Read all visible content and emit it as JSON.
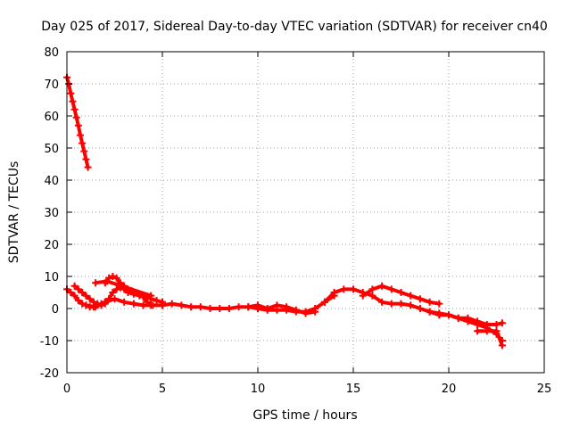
{
  "chart_data": {
    "type": "scatter",
    "title": "Day 025 of 2017, Sidereal Day-to-day VTEC variation (SDTVAR) for receiver cn40",
    "xlabel": "GPS time / hours",
    "ylabel": "SDTVAR / TECUs",
    "xlim": [
      0,
      25
    ],
    "ylim": [
      -20,
      80
    ],
    "xticks": [
      "0",
      "5",
      "10",
      "15",
      "20",
      "25"
    ],
    "yticks": [
      "-20",
      "-10",
      "0",
      "10",
      "20",
      "30",
      "40",
      "50",
      "60",
      "70",
      "80"
    ],
    "grid": true,
    "marker": "plus",
    "series": [
      {
        "name": "satellite-descending-high",
        "color": "#ff0000",
        "x": [
          0.0,
          0.1,
          0.2,
          0.3,
          0.4,
          0.5,
          0.6,
          0.7,
          0.8,
          0.9,
          1.0,
          1.1
        ],
        "y": [
          72,
          70,
          67,
          64.5,
          62,
          59.5,
          57,
          54,
          51.5,
          49,
          46.5,
          44
        ]
      },
      {
        "name": "track-early-a",
        "color": "#ff0000",
        "x": [
          0.0,
          0.2,
          0.4,
          0.6,
          0.8,
          1.0,
          1.2,
          1.4,
          1.6,
          1.8,
          2.0,
          2.2
        ],
        "y": [
          6,
          5,
          4,
          2.5,
          1.5,
          1,
          0.5,
          0.5,
          1,
          1.5,
          2,
          3
        ]
      },
      {
        "name": "track-early-b",
        "color": "#ff0000",
        "x": [
          0.4,
          0.6,
          0.8,
          1.0,
          1.2,
          1.4,
          1.6,
          1.8,
          2.0,
          2.2,
          2.4,
          2.6,
          2.8,
          3.0,
          3.2,
          3.5,
          3.8,
          4.1,
          4.4,
          4.7,
          5.0
        ],
        "y": [
          7,
          6,
          5,
          4,
          3,
          2,
          1.5,
          1,
          1.5,
          3,
          5,
          6,
          6.5,
          6,
          5,
          4.5,
          4,
          3.5,
          3,
          2.5,
          2
        ]
      },
      {
        "name": "track-early-c",
        "color": "#ff0000",
        "x": [
          2.0,
          2.2,
          2.4,
          2.6,
          2.8,
          3.0,
          3.2,
          3.4,
          3.6,
          3.8,
          4.0,
          4.2,
          4.4
        ],
        "y": [
          8,
          9.5,
          10,
          9.5,
          8,
          7,
          6,
          5.5,
          5,
          4.5,
          3.5,
          2,
          1
        ]
      },
      {
        "name": "track-early-d",
        "color": "#ff0000",
        "x": [
          1.0,
          1.5,
          2.0,
          2.5,
          3.0,
          3.5,
          4.0,
          4.5,
          5.0
        ],
        "y": [
          1,
          0.5,
          2,
          3,
          2,
          1.5,
          1,
          1,
          1
        ]
      },
      {
        "name": "isolated-points",
        "color": "#ff0000",
        "x": [
          1.5,
          2.1,
          4.4
        ],
        "y": [
          8,
          8.5,
          4
        ]
      },
      {
        "name": "track-midday",
        "color": "#ff0000",
        "x": [
          5.0,
          5.5,
          6.0,
          6.5,
          7.0,
          7.5,
          8.0,
          8.5,
          9.0,
          9.5,
          10.0,
          10.5,
          11.0,
          11.5,
          12.0,
          12.5,
          13.0,
          13.5,
          14.0
        ],
        "y": [
          1,
          1.5,
          1,
          0.5,
          0.5,
          0,
          0,
          0,
          0.5,
          0.5,
          0,
          -0.5,
          -0.5,
          -0.5,
          -1,
          -1,
          0,
          2,
          4
        ]
      },
      {
        "name": "track-midday-b",
        "color": "#ff0000",
        "x": [
          9.5,
          10.0,
          10.5,
          11.0,
          11.5,
          12.0,
          12.5,
          13.0
        ],
        "y": [
          0.5,
          1,
          0,
          1,
          0.5,
          -0.5,
          -1.5,
          -1
        ]
      },
      {
        "name": "track-afternoon",
        "color": "#ff0000",
        "x": [
          13.5,
          14.0,
          14.5,
          15.0,
          15.5,
          16.0,
          16.5,
          17.0,
          17.5,
          18.0,
          18.5,
          19.0,
          19.5,
          20.0,
          20.5,
          21.0,
          21.5,
          22.0,
          22.5,
          22.8
        ],
        "y": [
          2,
          5,
          6,
          6,
          5,
          4,
          2,
          1.5,
          1.5,
          1,
          0,
          -1,
          -2,
          -2,
          -3,
          -3,
          -4,
          -5,
          -5,
          -4.5
        ]
      },
      {
        "name": "track-afternoon-b",
        "color": "#ff0000",
        "x": [
          15.5,
          16.0,
          16.5,
          17.0,
          17.5,
          18.0,
          18.5,
          19.0,
          19.5
        ],
        "y": [
          4,
          6,
          7,
          6,
          5,
          4,
          3,
          2,
          1.5
        ]
      },
      {
        "name": "track-late",
        "color": "#ff0000",
        "x": [
          19.0,
          19.5,
          20.0,
          20.5,
          21.0,
          21.5,
          22.0,
          22.5,
          22.8
        ],
        "y": [
          -1,
          -1.5,
          -2,
          -3,
          -4,
          -5,
          -6,
          -8,
          -10
        ]
      },
      {
        "name": "track-late-b",
        "color": "#ff0000",
        "x": [
          21.5,
          22.0,
          22.5,
          22.8
        ],
        "y": [
          -7,
          -7,
          -7,
          -11.5
        ]
      }
    ]
  }
}
